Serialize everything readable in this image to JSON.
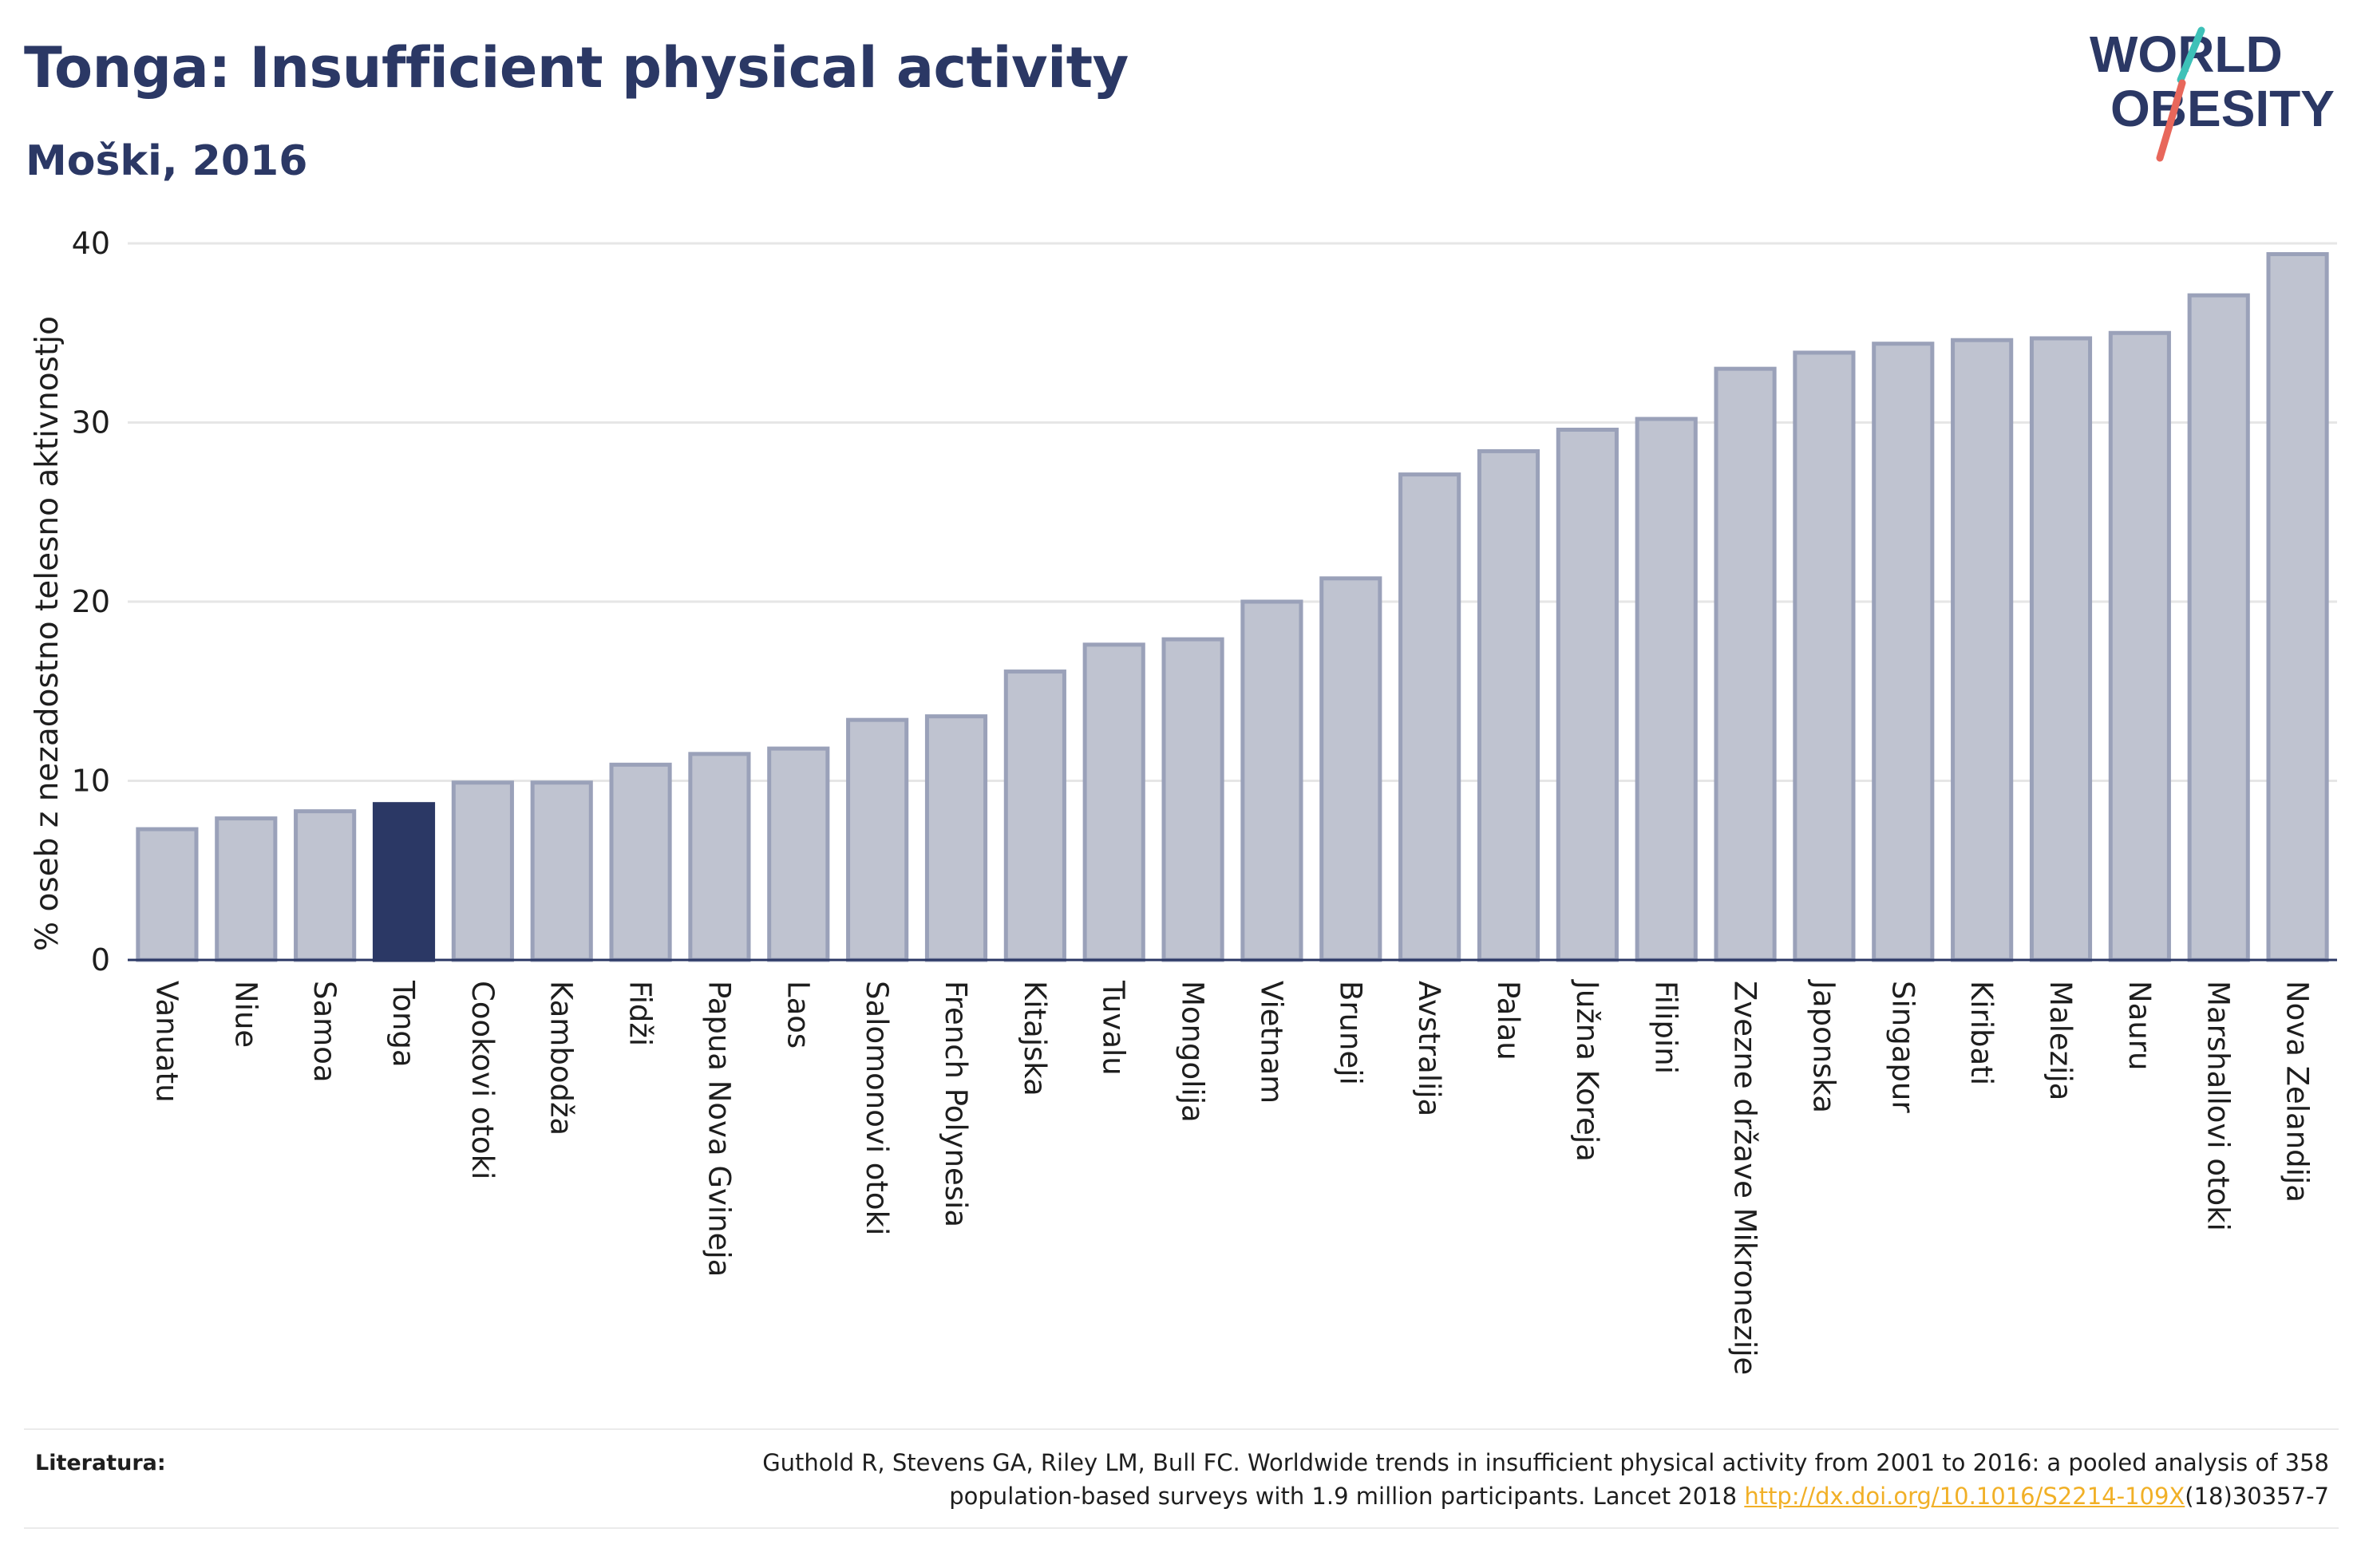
{
  "header": {
    "title": "Tonga: Insufficient physical activity",
    "subtitle": "Moški, 2016"
  },
  "logo": {
    "line1": "WORLD",
    "line2": "OBESITY"
  },
  "footer": {
    "label": "Literatura:",
    "line1": "Guthold R, Stevens GA, Riley LM, Bull FC. Worldwide trends in insufficient physical activity from 2001 to 2016: a pooled analysis of 358",
    "line2_prefix": "population-based surveys with 1.9 million participants. Lancet 2018 ",
    "link": "http://dx.doi.org/10.1016/S2214-109X",
    "line2_suffix": "(18)30357-7"
  },
  "colors": {
    "bar": "#bfc3d0",
    "bar_outline": "#9aa1b9",
    "highlight": "#2b3865",
    "grid": "#e6e6e6",
    "axis": "#2b3865",
    "text": "#1e1e1e",
    "logo_slash_teal": "#3ec1b8",
    "logo_slash_red": "#e8675b"
  },
  "chart_data": {
    "type": "bar",
    "ylabel": "% oseb z nezadostno telesno aktivnostjo",
    "xlabel": "",
    "ylim": [
      0,
      40
    ],
    "yticks": [
      0,
      10,
      20,
      30,
      40
    ],
    "grid": true,
    "highlight": "Tonga",
    "categories": [
      "Vanuatu",
      "Niue",
      "Samoa",
      "Tonga",
      "Cookovi otoki",
      "Kambodža",
      "Fidži",
      "Papua Nova Gvineja",
      "Laos",
      "Salomonovi otoki",
      "French Polynesia",
      "Kitajska",
      "Tuvalu",
      "Mongolija",
      "Vietnam",
      "Bruneji",
      "Avstralija",
      "Palau",
      "Južna Koreja",
      "Filipini",
      "Zvezne države Mikronezije",
      "Japonska",
      "Singapur",
      "Kiribati",
      "Malezija",
      "Nauru",
      "Marshallovi otoki",
      "Nova Zelandija"
    ],
    "values": [
      7.3,
      7.9,
      8.3,
      8.7,
      9.9,
      9.9,
      10.9,
      11.5,
      11.8,
      13.4,
      13.6,
      16.1,
      17.6,
      17.9,
      20.0,
      21.3,
      27.1,
      28.4,
      29.6,
      30.2,
      33.0,
      33.9,
      34.4,
      34.6,
      34.7,
      35.0,
      37.1,
      39.4
    ]
  }
}
